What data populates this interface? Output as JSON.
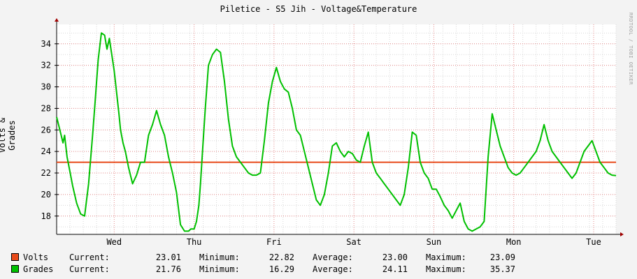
{
  "title": "Piletice - S5 Jih - Voltage&Temperature",
  "ylabel": "Volts & Grades",
  "watermark": "RRDTOOL / TOBI OETIKER",
  "colors": {
    "volts": "#e84a1a",
    "grades": "#00c000",
    "grid_major": "#e58a8a",
    "grid_minor": "#d8d8d8"
  },
  "legend": {
    "current_label": "Current:",
    "minimum_label": "Minimum:",
    "average_label": "Average:",
    "maximum_label": "Maximum:",
    "series": [
      {
        "name": "Volts",
        "current": "23.01",
        "minimum": "22.82",
        "average": "23.00",
        "maximum": "23.09"
      },
      {
        "name": "Grades",
        "current": "21.76",
        "minimum": "16.29",
        "average": "24.11",
        "maximum": "35.37"
      }
    ]
  },
  "chart_data": {
    "type": "line",
    "title": "Piletice - S5 Jih - Voltage&Temperature",
    "ylabel": "Volts & Grades",
    "xlabel": "",
    "x_range": [
      0,
      7
    ],
    "ylim": [
      16.3,
      35.8
    ],
    "yticks": [
      18,
      20,
      22,
      24,
      26,
      28,
      30,
      32,
      34
    ],
    "ytick_labels": [
      "18",
      "20",
      "22",
      "24",
      "26",
      "28",
      "30",
      "32",
      "34"
    ],
    "xticks": [
      0.72,
      1.72,
      2.72,
      3.72,
      4.72,
      5.72,
      6.72
    ],
    "xtick_labels": [
      "Wed",
      "Thu",
      "Fri",
      "Sat",
      "Sun",
      "Mon",
      "Tue"
    ],
    "grid": true,
    "legend_position": "bottom",
    "series": [
      {
        "name": "Volts",
        "x": [
          0,
          1,
          2,
          3,
          4,
          5,
          6,
          7
        ],
        "y": [
          23.0,
          23.0,
          23.0,
          23.0,
          23.0,
          23.0,
          23.0,
          23.0
        ]
      },
      {
        "name": "Grades",
        "x": [
          0.0,
          0.04,
          0.08,
          0.1,
          0.13,
          0.17,
          0.2,
          0.25,
          0.3,
          0.35,
          0.4,
          0.45,
          0.48,
          0.52,
          0.56,
          0.6,
          0.63,
          0.66,
          0.7,
          0.72,
          0.75,
          0.78,
          0.8,
          0.83,
          0.86,
          0.9,
          0.95,
          1.0,
          1.05,
          1.1,
          1.15,
          1.2,
          1.25,
          1.3,
          1.35,
          1.4,
          1.45,
          1.5,
          1.55,
          1.6,
          1.65,
          1.68,
          1.72,
          1.75,
          1.78,
          1.8,
          1.83,
          1.86,
          1.9,
          1.95,
          2.0,
          2.05,
          2.1,
          2.15,
          2.2,
          2.25,
          2.3,
          2.35,
          2.4,
          2.45,
          2.5,
          2.55,
          2.6,
          2.65,
          2.7,
          2.75,
          2.8,
          2.85,
          2.9,
          2.95,
          3.0,
          3.05,
          3.1,
          3.15,
          3.2,
          3.25,
          3.3,
          3.35,
          3.4,
          3.45,
          3.5,
          3.55,
          3.6,
          3.65,
          3.7,
          3.75,
          3.8,
          3.85,
          3.9,
          3.95,
          4.0,
          4.05,
          4.1,
          4.15,
          4.2,
          4.25,
          4.3,
          4.35,
          4.4,
          4.45,
          4.5,
          4.55,
          4.6,
          4.65,
          4.7,
          4.75,
          4.8,
          4.85,
          4.9,
          4.95,
          5.0,
          5.05,
          5.1,
          5.15,
          5.2,
          5.25,
          5.3,
          5.35,
          5.4,
          5.45,
          5.5,
          5.55,
          5.6,
          5.65,
          5.7,
          5.75,
          5.8,
          5.85,
          5.9,
          5.95,
          6.0,
          6.05,
          6.1,
          6.15,
          6.2,
          6.25,
          6.3,
          6.35,
          6.4,
          6.45,
          6.5,
          6.55,
          6.6,
          6.65,
          6.7,
          6.75,
          6.8,
          6.85,
          6.9,
          6.95,
          7.0
        ],
        "y": [
          27.2,
          26.0,
          24.8,
          25.5,
          23.5,
          22.0,
          20.8,
          19.2,
          18.2,
          18.0,
          21.0,
          25.5,
          28.5,
          32.5,
          35.0,
          34.8,
          33.5,
          34.5,
          32.5,
          31.5,
          29.5,
          27.5,
          26.0,
          24.8,
          24.0,
          22.5,
          21.0,
          21.8,
          23.0,
          23.0,
          25.5,
          26.5,
          27.8,
          26.5,
          25.5,
          23.5,
          22.0,
          20.2,
          17.2,
          16.6,
          16.6,
          16.8,
          16.8,
          17.5,
          19.0,
          21.0,
          24.5,
          28.0,
          32.0,
          33.0,
          33.5,
          33.2,
          30.5,
          27.0,
          24.5,
          23.5,
          23.0,
          22.5,
          22.0,
          21.8,
          21.8,
          22.0,
          25.0,
          28.5,
          30.5,
          31.8,
          30.5,
          29.8,
          29.5,
          28.0,
          26.0,
          25.5,
          24.0,
          22.5,
          21.0,
          19.5,
          19.0,
          20.0,
          22.0,
          24.5,
          24.8,
          24.0,
          23.5,
          24.0,
          23.8,
          23.2,
          23.0,
          24.5,
          25.8,
          23.0,
          22.0,
          21.5,
          21.0,
          20.5,
          20.0,
          19.5,
          19.0,
          20.0,
          22.5,
          25.8,
          25.5,
          23.0,
          22.0,
          21.5,
          20.5,
          20.5,
          19.8,
          19.0,
          18.5,
          17.8,
          18.5,
          19.2,
          17.5,
          16.8,
          16.6,
          16.8,
          17.0,
          17.5,
          23.5,
          27.5,
          26.0,
          24.5,
          23.5,
          22.5,
          22.0,
          21.8,
          22.0,
          22.5,
          23.0,
          23.5,
          24.0,
          25.0,
          26.5,
          25.0,
          24.0,
          23.5,
          23.0,
          22.5,
          22.0,
          21.5,
          22.0,
          23.0,
          24.0,
          24.5,
          25.0,
          24.0,
          23.0,
          22.5,
          22.0,
          21.8,
          21.76
        ]
      }
    ]
  }
}
